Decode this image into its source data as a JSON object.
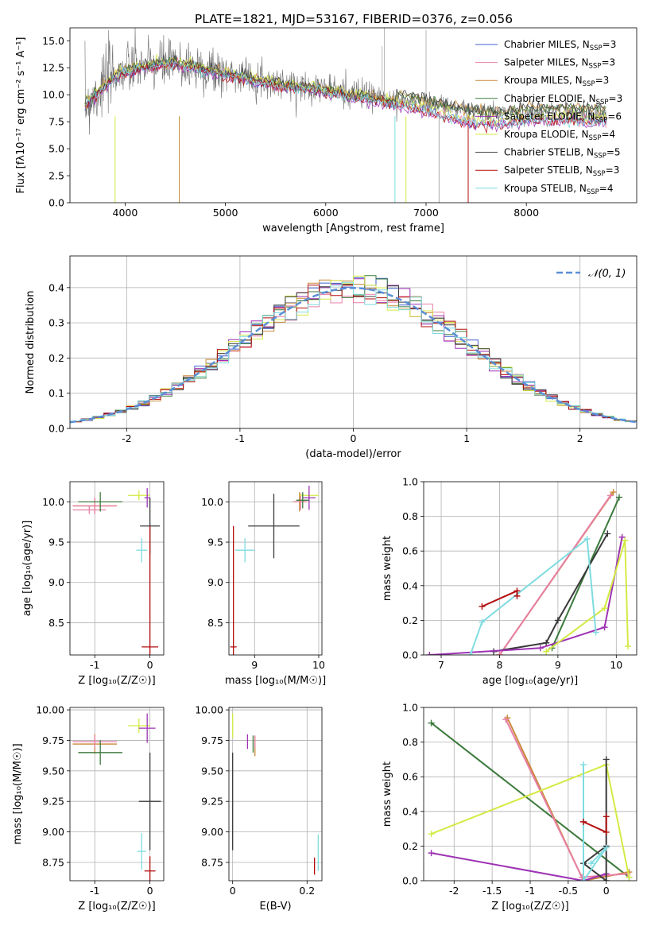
{
  "chart_data": [
    {
      "type": "line",
      "title": "PLATE=1821, MJD=53167, FIBERID=0376, z=0.056",
      "xlabel": "wavelength [Angstrom, rest frame]",
      "ylabel": "Flux [fλ10⁻¹⁷ erg cm⁻² s⁻¹ A⁻¹]",
      "xlim": [
        3450,
        9100
      ],
      "ylim": [
        0,
        16.2
      ],
      "xticks": [
        4000,
        5000,
        6000,
        7000,
        8000
      ],
      "yticks": [
        0.0,
        2.5,
        5.0,
        7.5,
        10.0,
        12.5,
        15.0
      ],
      "legend_position": "top-right",
      "series": [
        {
          "name": "Chabrier MILES, N",
          "sub": "SSP",
          "suffix": "=3",
          "color": "#4161cf"
        },
        {
          "name": "Salpeter MILES, N",
          "sub": "SSP",
          "suffix": "=3",
          "color": "#e87fa6"
        },
        {
          "name": "Kroupa MILES, N",
          "sub": "SSP",
          "suffix": "=3",
          "color": "#c98a3a"
        },
        {
          "name": "Chabrier ELODIE, N",
          "sub": "SSP",
          "suffix": "=3",
          "color": "#3c7a3c"
        },
        {
          "name": "Salpeter ELODIE, N",
          "sub": "SSP",
          "suffix": "=6",
          "color": "#9d32b4"
        },
        {
          "name": "Kroupa ELODIE, N",
          "sub": "SSP",
          "suffix": "=4",
          "color": "#d4ea44"
        },
        {
          "name": "Chabrier STELIB, N",
          "sub": "SSP",
          "suffix": "=5",
          "color": "#3a3a3a"
        },
        {
          "name": "Salpeter STELIB, N",
          "sub": "SSP",
          "suffix": "=3",
          "color": "#b30e0e"
        },
        {
          "name": "Kroupa STELIB, N",
          "sub": "SSP",
          "suffix": "=4",
          "color": "#7fdce0"
        }
      ],
      "data_envelope": {
        "x": [
          3600,
          3700,
          3800,
          3900,
          4000,
          4200,
          4400,
          4600,
          4800,
          5000,
          5200,
          5400,
          5600,
          5800,
          6000,
          6200,
          6400,
          6600,
          6800,
          7000,
          7200,
          7400,
          7600,
          7800,
          8000,
          8200,
          8400,
          8600,
          8800
        ],
        "observed": [
          9.0,
          10.0,
          11.2,
          12.0,
          12.3,
          12.6,
          12.8,
          12.7,
          12.4,
          12.0,
          11.8,
          11.3,
          11.0,
          10.8,
          10.6,
          10.2,
          10.0,
          9.6,
          9.4,
          9.2,
          9.0,
          8.6,
          8.4,
          8.4,
          8.3,
          8.5,
          8.3,
          8.2,
          8.3
        ],
        "model_kroupa_stelib": [
          9.0,
          9.8,
          10.8,
          11.5,
          12.0,
          12.4,
          12.8,
          12.6,
          12.2,
          11.8,
          11.4,
          11.0,
          10.6,
          10.5,
          10.2,
          9.8,
          9.6,
          9.2,
          8.8,
          8.4,
          7.9,
          7.5,
          7.2,
          7.3,
          7.6,
          7.6,
          7.7,
          7.5,
          7.5
        ]
      }
    },
    {
      "type": "line",
      "title": "",
      "xlabel": "(data-model)/error",
      "ylabel": "Normed distribution",
      "xlim": [
        -2.5,
        2.5
      ],
      "ylim": [
        0,
        0.49
      ],
      "xticks": [
        -2,
        -1,
        0,
        1,
        2
      ],
      "yticks": [
        0.0,
        0.1,
        0.2,
        0.3,
        0.4
      ],
      "legend": [
        {
          "name": "𝒩(0, 1)",
          "color": "#5b8ed6",
          "style": "dashed"
        }
      ],
      "legend_position": "top-right",
      "gaussian": {
        "mean": 0,
        "sigma": 1
      }
    },
    {
      "type": "errorbar",
      "xlabel": "Z [log₁₀(Z/Z☉)]",
      "ylabel": "age  [log₁₀(age/yr)]",
      "xlim": [
        -1.45,
        0.25
      ],
      "ylim": [
        8.1,
        10.25
      ],
      "xticks": [
        -1,
        0
      ],
      "yticks": [
        8.5,
        9.0,
        9.5,
        10.0
      ],
      "points": [
        {
          "x": -1.0,
          "y": 9.95,
          "xerr": 0.4,
          "yerr": 0.1,
          "color": "#c98a3a"
        },
        {
          "x": -1.0,
          "y": 9.95,
          "xerr": 0.4,
          "yerr": 0.1,
          "color": "#e87fa6"
        },
        {
          "x": -1.1,
          "y": 9.9,
          "xerr": 0.3,
          "yerr": 0.05,
          "color": "#e87fa6"
        },
        {
          "x": -0.9,
          "y": 10.0,
          "xerr": 0.4,
          "yerr": 0.12,
          "color": "#3c7a3c"
        },
        {
          "x": -0.2,
          "y": 10.08,
          "xerr": 0.2,
          "yerr": 0.06,
          "color": "#d4ea44"
        },
        {
          "x": -0.05,
          "y": 10.05,
          "xerr": 0.05,
          "yerr": 0.12,
          "color": "#9d32b4"
        },
        {
          "x": 0.0,
          "y": 9.7,
          "xerr": 0.18,
          "yerr": 0.35,
          "color": "#3a3a3a"
        },
        {
          "x": -0.15,
          "y": 9.4,
          "xerr": 0.1,
          "yerr": 0.15,
          "color": "#7fdce0"
        },
        {
          "x": 0.0,
          "y": 8.2,
          "xerr": 0.15,
          "yerr": 1.5,
          "color": "#b30e0e"
        }
      ]
    },
    {
      "type": "errorbar",
      "xlabel": "mass [log₁₀(M/M☉)]",
      "ylabel": "",
      "xlim": [
        8.6,
        10.05
      ],
      "ylim": [
        8.1,
        10.25
      ],
      "xticks": [
        9,
        10
      ],
      "yticks": [
        8.5,
        9.0,
        9.5,
        10.0
      ],
      "points": [
        {
          "x": 9.7,
          "y": 10.0,
          "xerr": 0.1,
          "yerr": 0.12,
          "color": "#c98a3a"
        },
        {
          "x": 9.72,
          "y": 10.0,
          "xerr": 0.1,
          "yerr": 0.1,
          "color": "#e87fa6"
        },
        {
          "x": 9.85,
          "y": 10.08,
          "xerr": 0.15,
          "yerr": 0.08,
          "color": "#d4ea44"
        },
        {
          "x": 9.85,
          "y": 10.05,
          "xerr": 0.1,
          "yerr": 0.15,
          "color": "#9d32b4"
        },
        {
          "x": 9.75,
          "y": 10.02,
          "xerr": 0.1,
          "yerr": 0.1,
          "color": "#3c7a3c"
        },
        {
          "x": 9.3,
          "y": 9.7,
          "xerr": 0.4,
          "yerr": 0.4,
          "color": "#3a3a3a"
        },
        {
          "x": 8.85,
          "y": 9.4,
          "xerr": 0.15,
          "yerr": 0.15,
          "color": "#7fdce0"
        },
        {
          "x": 8.67,
          "y": 8.2,
          "xerr": 0.05,
          "yerr": 1.5,
          "color": "#b30e0e"
        }
      ]
    },
    {
      "type": "line",
      "xlabel": "age  [log₁₀(age/yr)]",
      "ylabel": "mass weight",
      "xlim": [
        6.7,
        10.35
      ],
      "ylim": [
        0,
        1.0
      ],
      "xticks": [
        7,
        8,
        9,
        10
      ],
      "yticks": [
        0.0,
        0.2,
        0.4,
        0.6,
        0.8,
        1.0
      ],
      "series": [
        {
          "color": "#c98a3a",
          "x": [
            8.0,
            9.95
          ],
          "y": [
            0.0,
            0.94
          ]
        },
        {
          "color": "#e87fa6",
          "x": [
            8.0,
            9.9
          ],
          "y": [
            0.0,
            0.92
          ]
        },
        {
          "color": "#3c7a3c",
          "x": [
            8.9,
            10.05
          ],
          "y": [
            0.04,
            0.91
          ]
        },
        {
          "color": "#3a3a3a",
          "x": [
            7.9,
            8.8,
            9.0,
            9.85
          ],
          "y": [
            0.02,
            0.07,
            0.2,
            0.7
          ]
        },
        {
          "color": "#9d32b4",
          "x": [
            6.8,
            8.7,
            9.8,
            10.1
          ],
          "y": [
            0.0,
            0.04,
            0.16,
            0.68
          ]
        },
        {
          "color": "#d4ea44",
          "x": [
            8.8,
            9.8,
            10.15,
            10.2
          ],
          "y": [
            0.02,
            0.27,
            0.66,
            0.05
          ]
        },
        {
          "color": "#7fdce0",
          "x": [
            7.5,
            7.7,
            9.5,
            9.65
          ],
          "y": [
            0.0,
            0.19,
            0.67,
            0.13
          ]
        },
        {
          "color": "#b30e0e",
          "x": [
            7.7,
            8.3,
            8.3
          ],
          "y": [
            0.28,
            0.37,
            0.34
          ]
        }
      ]
    },
    {
      "type": "errorbar",
      "xlabel": "Z [log₁₀(Z/Z☉)]",
      "ylabel": "mass [log₁₀(M/M☉)]",
      "xlim": [
        -1.45,
        0.25
      ],
      "ylim": [
        8.6,
        10.02
      ],
      "xticks": [
        -1,
        0
      ],
      "yticks": [
        8.75,
        9.0,
        9.25,
        9.5,
        9.75,
        10.0
      ],
      "points": [
        {
          "x": -1.0,
          "y": 9.72,
          "xerr": 0.4,
          "yerr": 0.08,
          "color": "#c98a3a"
        },
        {
          "x": -1.0,
          "y": 9.74,
          "xerr": 0.4,
          "yerr": 0.05,
          "color": "#e87fa6"
        },
        {
          "x": -0.9,
          "y": 9.65,
          "xerr": 0.4,
          "yerr": 0.1,
          "color": "#3c7a3c"
        },
        {
          "x": -0.2,
          "y": 9.87,
          "xerr": 0.2,
          "yerr": 0.06,
          "color": "#d4ea44"
        },
        {
          "x": -0.05,
          "y": 9.85,
          "xerr": 0.15,
          "yerr": 0.12,
          "color": "#9d32b4"
        },
        {
          "x": 0.0,
          "y": 9.25,
          "xerr": 0.2,
          "yerr": 0.4,
          "color": "#3a3a3a"
        },
        {
          "x": -0.15,
          "y": 8.84,
          "xerr": 0.08,
          "yerr": 0.15,
          "color": "#7fdce0"
        },
        {
          "x": 0.0,
          "y": 8.68,
          "xerr": 0.1,
          "yerr": 0.12,
          "color": "#b30e0e"
        }
      ]
    },
    {
      "type": "errorbar",
      "xlabel": "E(B-V)",
      "ylabel": "",
      "xlim": [
        -0.01,
        0.24
      ],
      "ylim": [
        8.6,
        10.02
      ],
      "xticks": [
        0.0,
        0.2
      ],
      "yticks": [
        8.75,
        9.0,
        9.25,
        9.5,
        9.75,
        10.0
      ],
      "points": [
        {
          "x": 0.06,
          "y": 9.7,
          "xerr": 0.0,
          "yerr": 0.08,
          "color": "#c98a3a"
        },
        {
          "x": 0.06,
          "y": 9.74,
          "xerr": 0.0,
          "yerr": 0.05,
          "color": "#e87fa6"
        },
        {
          "x": 0.04,
          "y": 9.74,
          "xerr": 0.0,
          "yerr": 0.06,
          "color": "#9d32b4"
        },
        {
          "x": 0.055,
          "y": 9.72,
          "xerr": 0.0,
          "yerr": 0.07,
          "color": "#3c7a3c"
        },
        {
          "x": 0.0,
          "y": 9.87,
          "xerr": 0.0,
          "yerr": 0.1,
          "color": "#d4ea44"
        },
        {
          "x": 0.0,
          "y": 9.25,
          "xerr": 0.0,
          "yerr": 0.4,
          "color": "#3a3a3a"
        },
        {
          "x": 0.23,
          "y": 8.83,
          "xerr": 0.0,
          "yerr": 0.15,
          "color": "#7fdce0"
        },
        {
          "x": 0.22,
          "y": 8.72,
          "xerr": 0.0,
          "yerr": 0.07,
          "color": "#b30e0e"
        }
      ]
    },
    {
      "type": "line",
      "xlabel": "Z [log₁₀(Z/Z☉)]",
      "ylabel": "mass weight",
      "xlim": [
        -2.4,
        0.4
      ],
      "ylim": [
        0,
        1.0
      ],
      "xticks": [
        -2.0,
        -1.5,
        -1.0,
        -0.5,
        0.0
      ],
      "yticks": [
        0.0,
        0.2,
        0.4,
        0.6,
        0.8,
        1.0
      ],
      "series": [
        {
          "color": "#3c7a3c",
          "x": [
            -2.3,
            0.3
          ],
          "y": [
            0.91,
            0.02
          ]
        },
        {
          "color": "#c98a3a",
          "x": [
            -1.3,
            -0.3,
            0.3
          ],
          "y": [
            0.94,
            0.0,
            0.05
          ]
        },
        {
          "color": "#e87fa6",
          "x": [
            -1.32,
            -0.32,
            0.28
          ],
          "y": [
            0.93,
            0.02,
            0.04
          ]
        },
        {
          "color": "#d4ea44",
          "x": [
            -2.3,
            0.0,
            0.3
          ],
          "y": [
            0.27,
            0.67,
            0.02
          ]
        },
        {
          "color": "#9d32b4",
          "x": [
            -2.3,
            -0.3,
            0.0
          ],
          "y": [
            0.16,
            0.0,
            0.04
          ]
        },
        {
          "color": "#3a3a3a",
          "x": [
            0.0,
            0.0,
            -0.3,
            0.0
          ],
          "y": [
            0.7,
            0.0,
            0.1,
            0.2
          ]
        },
        {
          "color": "#7fdce0",
          "x": [
            -0.3,
            -0.3,
            0.0,
            -0.2
          ],
          "y": [
            0.67,
            0.0,
            0.19,
            0.1
          ]
        },
        {
          "color": "#b30e0e",
          "x": [
            -0.3,
            0.0,
            0.0
          ],
          "y": [
            0.34,
            0.28,
            0.37
          ]
        }
      ]
    }
  ]
}
